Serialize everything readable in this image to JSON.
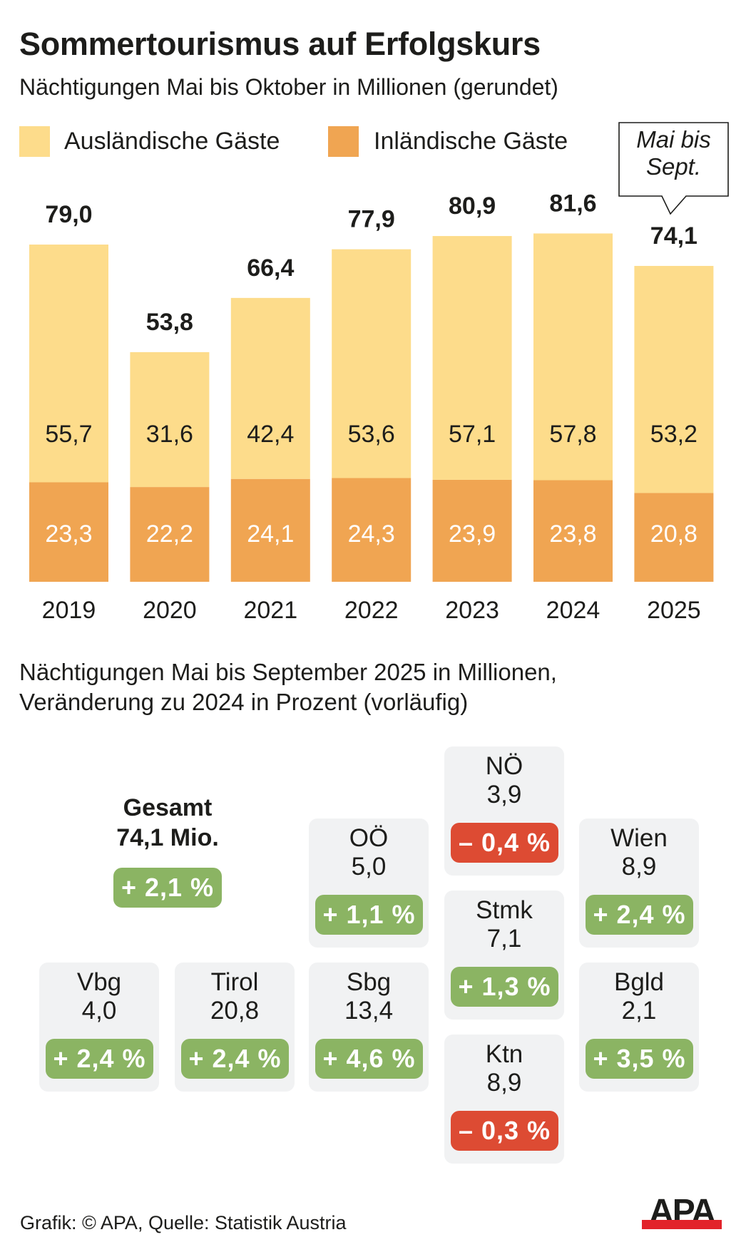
{
  "header": {
    "title": "Sommertourismus auf Erfolgskurs",
    "subtitle": "Nächtigungen Mai bis Oktober in Millionen (gerundet)"
  },
  "legend": [
    {
      "label": "Ausländische Gäste",
      "color": "#fddc8b"
    },
    {
      "label": "Inländische Gäste",
      "color": "#f0a552"
    }
  ],
  "callout": {
    "line1": "Mai bis",
    "line2": "Sept."
  },
  "chart_data": {
    "type": "bar",
    "stacked": true,
    "title": "Sommertourismus auf Erfolgskurs",
    "subtitle": "Nächtigungen Mai bis Oktober in Millionen (gerundet)",
    "xlabel": "",
    "ylabel": "",
    "categories": [
      "2019",
      "2020",
      "2021",
      "2022",
      "2023",
      "2024",
      "2025"
    ],
    "series": [
      {
        "name": "Inländische Gäste",
        "color": "#f0a552",
        "label_color": "#ffffff",
        "values": [
          23.3,
          22.2,
          24.1,
          24.3,
          23.9,
          23.8,
          20.8
        ],
        "labels": [
          "23,3",
          "22,2",
          "24,1",
          "24,3",
          "23,9",
          "23,8",
          "20,8"
        ]
      },
      {
        "name": "Ausländische Gäste",
        "color": "#fddc8b",
        "label_color": "#1d1d1b",
        "values": [
          55.7,
          31.6,
          42.4,
          53.6,
          57.1,
          57.8,
          53.2
        ],
        "labels": [
          "55,7",
          "31,6",
          "42,4",
          "53,6",
          "57,1",
          "57,8",
          "53,2"
        ]
      }
    ],
    "totals": [
      79.0,
      53.8,
      66.4,
      77.9,
      80.9,
      81.6,
      74.1
    ],
    "total_labels": [
      "79,0",
      "53,8",
      "66,4",
      "77,9",
      "80,9",
      "81,6",
      "74,1"
    ],
    "ylim": [
      0,
      90
    ],
    "grid": false,
    "legend_position": "top-left",
    "annotations": [
      {
        "category": "2025",
        "text": "Mai bis Sept."
      }
    ]
  },
  "regions_section": {
    "subtitle_line1": "Nächtigungen Mai bis September 2025 in Millionen,",
    "subtitle_line2": "Veränderung zu 2024 in Prozent (vorläufig)",
    "total": {
      "label": "Gesamt",
      "value": "74,1 Mio.",
      "change": "+ 2,1 %",
      "direction": "positive"
    },
    "tiles": [
      {
        "name": "NÖ",
        "value": "3,9",
        "change": "– 0,4 %",
        "direction": "negative",
        "col": 3,
        "row": 0
      },
      {
        "name": "OÖ",
        "value": "5,0",
        "change": "+ 1,1 %",
        "direction": "positive",
        "col": 2,
        "row": 1
      },
      {
        "name": "Wien",
        "value": "8,9",
        "change": "+ 2,4 %",
        "direction": "positive",
        "col": 4,
        "row": 1
      },
      {
        "name": "Stmk",
        "value": "7,1",
        "change": "+ 1,3 %",
        "direction": "positive",
        "col": 3,
        "row": 2
      },
      {
        "name": "Vbg",
        "value": "4,0",
        "change": "+ 2,4 %",
        "direction": "positive",
        "col": 0,
        "row": 3
      },
      {
        "name": "Tirol",
        "value": "20,8",
        "change": "+ 2,4 %",
        "direction": "positive",
        "col": 1,
        "row": 3
      },
      {
        "name": "Sbg",
        "value": "13,4",
        "change": "+ 4,6 %",
        "direction": "positive",
        "col": 2,
        "row": 3
      },
      {
        "name": "Bgld",
        "value": "2,1",
        "change": "+ 3,5 %",
        "direction": "positive",
        "col": 4,
        "row": 3
      },
      {
        "name": "Ktn",
        "value": "8,9",
        "change": "– 0,3 %",
        "direction": "negative",
        "col": 3,
        "row": 4
      }
    ],
    "colors": {
      "positive": "#8bb463",
      "negative": "#dd4b33",
      "tile_background": "#f1f2f3"
    }
  },
  "footer": {
    "credit": "Grafik: © APA, Quelle: Statistik Austria",
    "logo_text": "APA"
  }
}
